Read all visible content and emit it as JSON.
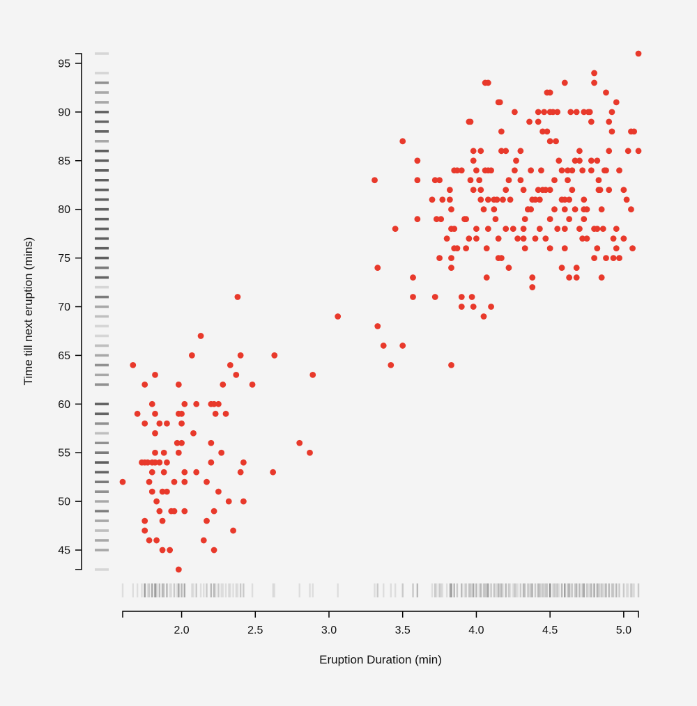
{
  "chart_data": {
    "type": "scatter",
    "title": "",
    "xlabel": "Eruption Duration (min)",
    "ylabel": "Time till next eruption (mins)",
    "xlim": [
      1.6,
      5.1
    ],
    "ylim": [
      43,
      96
    ],
    "xticks": [
      "2.0",
      "2.5",
      "3.0",
      "3.5",
      "4.0",
      "4.5",
      "5.0"
    ],
    "yticks": [
      "45",
      "50",
      "55",
      "60",
      "65",
      "70",
      "75",
      "80",
      "85",
      "90",
      "95"
    ],
    "grid": false,
    "legend": "none",
    "marginal_rugs": [
      "bottom",
      "left"
    ],
    "colors": {
      "points": "#e8392b",
      "rug": "#444444",
      "axis": "#000000",
      "background": "#f4f4f4"
    },
    "points": [
      [
        1.6,
        52
      ],
      [
        1.67,
        64
      ],
      [
        1.7,
        59
      ],
      [
        1.73,
        54
      ],
      [
        1.75,
        62
      ],
      [
        1.75,
        58
      ],
      [
        1.75,
        54
      ],
      [
        1.75,
        48
      ],
      [
        1.75,
        47
      ],
      [
        1.77,
        54
      ],
      [
        1.78,
        52
      ],
      [
        1.78,
        46
      ],
      [
        1.8,
        60
      ],
      [
        1.8,
        54
      ],
      [
        1.8,
        51
      ],
      [
        1.8,
        53
      ],
      [
        1.82,
        63
      ],
      [
        1.82,
        59
      ],
      [
        1.82,
        57
      ],
      [
        1.82,
        55
      ],
      [
        1.82,
        54
      ],
      [
        1.83,
        50
      ],
      [
        1.83,
        46
      ],
      [
        1.85,
        58
      ],
      [
        1.85,
        54
      ],
      [
        1.85,
        49
      ],
      [
        1.87,
        51
      ],
      [
        1.87,
        48
      ],
      [
        1.87,
        45
      ],
      [
        1.88,
        55
      ],
      [
        1.88,
        53
      ],
      [
        1.9,
        54
      ],
      [
        1.9,
        58
      ],
      [
        1.9,
        51
      ],
      [
        1.92,
        45
      ],
      [
        1.93,
        49
      ],
      [
        1.95,
        52
      ],
      [
        1.95,
        49
      ],
      [
        1.97,
        56
      ],
      [
        1.98,
        59
      ],
      [
        1.98,
        55
      ],
      [
        1.98,
        62
      ],
      [
        1.98,
        43
      ],
      [
        2.0,
        59
      ],
      [
        2.0,
        58
      ],
      [
        2.0,
        56
      ],
      [
        2.02,
        60
      ],
      [
        2.02,
        53
      ],
      [
        2.02,
        52
      ],
      [
        2.02,
        49
      ],
      [
        2.07,
        65
      ],
      [
        2.08,
        57
      ],
      [
        2.1,
        60
      ],
      [
        2.1,
        53
      ],
      [
        2.13,
        67
      ],
      [
        2.15,
        46
      ],
      [
        2.17,
        48
      ],
      [
        2.17,
        52
      ],
      [
        2.2,
        60
      ],
      [
        2.2,
        56
      ],
      [
        2.2,
        54
      ],
      [
        2.22,
        45
      ],
      [
        2.22,
        49
      ],
      [
        2.22,
        60
      ],
      [
        2.23,
        59
      ],
      [
        2.25,
        51
      ],
      [
        2.25,
        60
      ],
      [
        2.27,
        55
      ],
      [
        2.28,
        62
      ],
      [
        2.3,
        59
      ],
      [
        2.32,
        50
      ],
      [
        2.33,
        64
      ],
      [
        2.35,
        47
      ],
      [
        2.37,
        63
      ],
      [
        2.38,
        71
      ],
      [
        2.4,
        65
      ],
      [
        2.4,
        53
      ],
      [
        2.42,
        54
      ],
      [
        2.42,
        50
      ],
      [
        2.48,
        62
      ],
      [
        2.62,
        53
      ],
      [
        2.63,
        65
      ],
      [
        2.8,
        56
      ],
      [
        2.87,
        55
      ],
      [
        2.89,
        63
      ],
      [
        3.06,
        69
      ],
      [
        3.31,
        83
      ],
      [
        3.33,
        74
      ],
      [
        3.33,
        68
      ],
      [
        3.37,
        66
      ],
      [
        3.42,
        64
      ],
      [
        3.45,
        78
      ],
      [
        3.5,
        87
      ],
      [
        3.5,
        66
      ],
      [
        3.57,
        73
      ],
      [
        3.57,
        71
      ],
      [
        3.6,
        85
      ],
      [
        3.6,
        83
      ],
      [
        3.6,
        79
      ],
      [
        3.7,
        81
      ],
      [
        3.72,
        71
      ],
      [
        3.73,
        79
      ],
      [
        3.75,
        75
      ],
      [
        3.75,
        83
      ],
      [
        3.77,
        81
      ],
      [
        3.8,
        77
      ],
      [
        3.82,
        82
      ],
      [
        3.83,
        80
      ],
      [
        3.83,
        78
      ],
      [
        3.83,
        75
      ],
      [
        3.83,
        74
      ],
      [
        3.83,
        64
      ],
      [
        3.85,
        84
      ],
      [
        3.85,
        78
      ],
      [
        3.87,
        76
      ],
      [
        3.9,
        84
      ],
      [
        3.9,
        71
      ],
      [
        3.9,
        70
      ],
      [
        3.92,
        79
      ],
      [
        3.93,
        76
      ],
      [
        3.95,
        89
      ],
      [
        3.95,
        77
      ],
      [
        3.97,
        71
      ],
      [
        3.98,
        86
      ],
      [
        3.98,
        85
      ],
      [
        3.98,
        82
      ],
      [
        3.98,
        70
      ],
      [
        4.0,
        78
      ],
      [
        4.0,
        77
      ],
      [
        4.02,
        83
      ],
      [
        4.03,
        82
      ],
      [
        4.03,
        81
      ],
      [
        4.05,
        80
      ],
      [
        4.05,
        69
      ],
      [
        4.07,
        73
      ],
      [
        4.07,
        76
      ],
      [
        4.08,
        93
      ],
      [
        4.08,
        84
      ],
      [
        4.08,
        81
      ],
      [
        4.08,
        78
      ],
      [
        4.1,
        84
      ],
      [
        4.1,
        70
      ],
      [
        4.12,
        81
      ],
      [
        4.13,
        79
      ],
      [
        4.15,
        91
      ],
      [
        4.15,
        77
      ],
      [
        4.15,
        75
      ],
      [
        4.17,
        88
      ],
      [
        4.17,
        86
      ],
      [
        4.17,
        75
      ],
      [
        4.18,
        81
      ],
      [
        4.2,
        86
      ],
      [
        4.2,
        78
      ],
      [
        4.22,
        83
      ],
      [
        4.22,
        74
      ],
      [
        4.23,
        81
      ],
      [
        4.25,
        78
      ],
      [
        4.27,
        85
      ],
      [
        4.28,
        77
      ],
      [
        4.3,
        83
      ],
      [
        4.32,
        82
      ],
      [
        4.32,
        78
      ],
      [
        4.32,
        77
      ],
      [
        4.33,
        79
      ],
      [
        4.33,
        76
      ],
      [
        4.35,
        80
      ],
      [
        4.35,
        80
      ],
      [
        4.37,
        84
      ],
      [
        4.37,
        80
      ],
      [
        4.38,
        81
      ],
      [
        4.38,
        73
      ],
      [
        4.38,
        72
      ],
      [
        4.4,
        81
      ],
      [
        4.4,
        77
      ],
      [
        4.42,
        90
      ],
      [
        4.42,
        89
      ],
      [
        4.43,
        81
      ],
      [
        4.43,
        78
      ],
      [
        4.45,
        88
      ],
      [
        4.45,
        82
      ],
      [
        4.47,
        82
      ],
      [
        4.47,
        77
      ],
      [
        4.48,
        92
      ],
      [
        4.5,
        82
      ],
      [
        4.5,
        79
      ],
      [
        4.5,
        76
      ],
      [
        4.5,
        87
      ],
      [
        4.52,
        90
      ],
      [
        4.53,
        83
      ],
      [
        4.53,
        80
      ],
      [
        4.55,
        90
      ],
      [
        4.55,
        78
      ],
      [
        4.58,
        81
      ],
      [
        4.58,
        74
      ],
      [
        4.6,
        81
      ],
      [
        4.6,
        80
      ],
      [
        4.6,
        78
      ],
      [
        4.6,
        76
      ],
      [
        4.62,
        84
      ],
      [
        4.62,
        83
      ],
      [
        4.63,
        81
      ],
      [
        4.63,
        79
      ],
      [
        4.63,
        73
      ],
      [
        4.65,
        84
      ],
      [
        4.65,
        82
      ],
      [
        4.67,
        85
      ],
      [
        4.67,
        80
      ],
      [
        4.68,
        74
      ],
      [
        4.68,
        73
      ],
      [
        4.7,
        85
      ],
      [
        4.7,
        78
      ],
      [
        4.72,
        84
      ],
      [
        4.72,
        77
      ],
      [
        4.73,
        81
      ],
      [
        4.73,
        79
      ],
      [
        4.75,
        80
      ],
      [
        4.75,
        77
      ],
      [
        4.77,
        90
      ],
      [
        4.78,
        85
      ],
      [
        4.78,
        84
      ],
      [
        4.8,
        93
      ],
      [
        4.8,
        78
      ],
      [
        4.8,
        75
      ],
      [
        4.82,
        85
      ],
      [
        4.82,
        78
      ],
      [
        4.82,
        76
      ],
      [
        4.83,
        83
      ],
      [
        4.83,
        82
      ],
      [
        4.85,
        80
      ],
      [
        4.85,
        73
      ],
      [
        4.87,
        84
      ],
      [
        4.88,
        84
      ],
      [
        4.88,
        75
      ],
      [
        4.9,
        82
      ],
      [
        4.92,
        90
      ],
      [
        4.93,
        75
      ],
      [
        4.93,
        77
      ],
      [
        4.95,
        78
      ],
      [
        4.95,
        76
      ],
      [
        4.97,
        84
      ],
      [
        4.97,
        75
      ],
      [
        5.0,
        82
      ],
      [
        5.02,
        81
      ],
      [
        5.03,
        86
      ],
      [
        5.05,
        88
      ],
      [
        5.05,
        80
      ],
      [
        5.07,
        88
      ],
      [
        5.1,
        86
      ],
      [
        4.95,
        91
      ],
      [
        4.88,
        92
      ],
      [
        4.92,
        88
      ],
      [
        4.9,
        86
      ],
      [
        4.84,
        82
      ],
      [
        4.86,
        78
      ],
      [
        4.76,
        90
      ],
      [
        4.78,
        89
      ],
      [
        4.73,
        90
      ],
      [
        4.68,
        90
      ],
      [
        4.64,
        90
      ],
      [
        4.56,
        85
      ],
      [
        4.58,
        84
      ],
      [
        4.54,
        87
      ],
      [
        4.5,
        90
      ],
      [
        4.46,
        90
      ],
      [
        4.48,
        88
      ],
      [
        4.44,
        84
      ],
      [
        4.42,
        82
      ],
      [
        4.36,
        89
      ],
      [
        4.3,
        86
      ],
      [
        4.26,
        84
      ],
      [
        4.2,
        82
      ],
      [
        4.14,
        81
      ],
      [
        4.12,
        80
      ],
      [
        4.06,
        84
      ],
      [
        4.03,
        86
      ],
      [
        4.0,
        84
      ],
      [
        3.96,
        83
      ],
      [
        3.93,
        79
      ],
      [
        3.87,
        84
      ],
      [
        3.85,
        76
      ],
      [
        3.82,
        81
      ],
      [
        3.76,
        79
      ],
      [
        3.72,
        83
      ],
      [
        4.7,
        86
      ],
      [
        4.73,
        80
      ],
      [
        4.9,
        89
      ],
      [
        5.0,
        77
      ],
      [
        5.06,
        76
      ],
      [
        5.1,
        96
      ],
      [
        4.8,
        94
      ],
      [
        4.6,
        93
      ],
      [
        4.5,
        92
      ],
      [
        4.26,
        90
      ],
      [
        4.16,
        91
      ],
      [
        4.06,
        93
      ],
      [
        3.96,
        89
      ]
    ]
  }
}
